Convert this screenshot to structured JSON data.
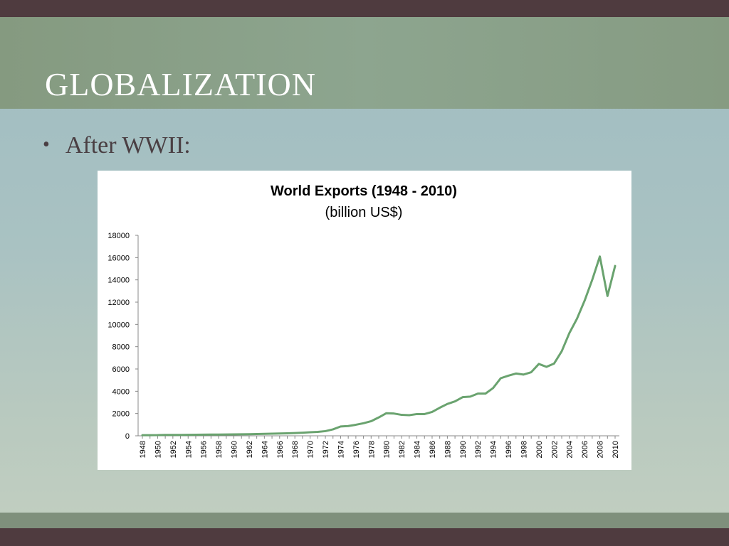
{
  "slide": {
    "title": "GLOBALIZATION",
    "bullet": "After WWII:"
  },
  "colors": {
    "line": "#6aa36f",
    "band_dark": "#4f3b3f",
    "title_band": "#8da58f"
  },
  "chart_data": {
    "type": "line",
    "title": "World Exports (1948 - 2010)",
    "subtitle": "(billion US$)",
    "xlabel": "",
    "ylabel": "",
    "ylim": [
      0,
      18000
    ],
    "yticks": [
      0,
      2000,
      4000,
      6000,
      8000,
      10000,
      12000,
      14000,
      16000,
      18000
    ],
    "grid": false,
    "legend": "none",
    "x": [
      1948,
      1949,
      1950,
      1951,
      1952,
      1953,
      1954,
      1955,
      1956,
      1957,
      1958,
      1959,
      1960,
      1961,
      1962,
      1963,
      1964,
      1965,
      1966,
      1967,
      1968,
      1969,
      1970,
      1971,
      1972,
      1973,
      1974,
      1975,
      1976,
      1977,
      1978,
      1979,
      1980,
      1981,
      1982,
      1983,
      1984,
      1985,
      1986,
      1987,
      1988,
      1989,
      1990,
      1991,
      1992,
      1993,
      1994,
      1995,
      1996,
      1997,
      1998,
      1999,
      2000,
      2001,
      2002,
      2003,
      2004,
      2005,
      2006,
      2007,
      2008,
      2009,
      2010
    ],
    "xtick_labels": [
      "1948",
      "1950",
      "1952",
      "1954",
      "1956",
      "1958",
      "1960",
      "1962",
      "1964",
      "1966",
      "1968",
      "1970",
      "1972",
      "1974",
      "1976",
      "1978",
      "1980",
      "1982",
      "1984",
      "1986",
      "1988",
      "1990",
      "1992",
      "1994",
      "1996",
      "1998",
      "2000",
      "2002",
      "2004",
      "2006",
      "2008",
      "2010"
    ],
    "series": [
      {
        "values": [
          59,
          59,
          62,
          82,
          80,
          83,
          86,
          95,
          104,
          112,
          108,
          116,
          130,
          135,
          142,
          157,
          176,
          190,
          207,
          220,
          244,
          278,
          317,
          353,
          419,
          579,
          840,
          875,
          992,
          1128,
          1310,
          1650,
          2030,
          2000,
          1880,
          1850,
          1950,
          1950,
          2140,
          2520,
          2860,
          3090,
          3470,
          3520,
          3790,
          3790,
          4290,
          5170,
          5400,
          5590,
          5500,
          5710,
          6450,
          6190,
          6490,
          7590,
          9220,
          10510,
          12130,
          14000,
          16100,
          12550,
          15250
        ]
      }
    ]
  }
}
